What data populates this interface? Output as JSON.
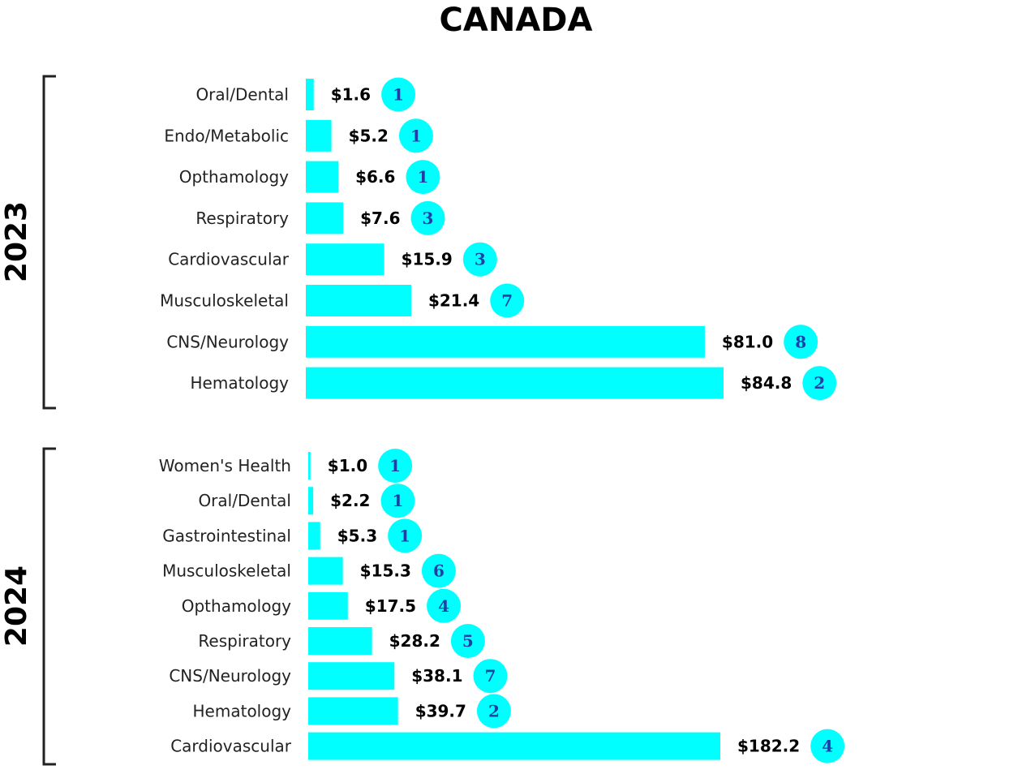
{
  "chart_data": {
    "type": "bar",
    "orientation": "horizontal",
    "title": "CANADA",
    "bar_color": "#00FFFF",
    "badge_color": "#00FFFF",
    "badge_text_color": "#1F3FA8",
    "groups": [
      {
        "label": "2023",
        "categories": [
          "Oral/Dental",
          "Endo/Metabolic",
          "Opthamology",
          "Respiratory",
          "Cardiovascular",
          "Musculoskeletal",
          "CNS/Neurology",
          "Hematology"
        ],
        "values": [
          1.6,
          5.2,
          6.6,
          7.6,
          15.9,
          21.4,
          81.0,
          84.8
        ],
        "value_labels": [
          "$1.6",
          "$5.2",
          "$6.6",
          "$7.6",
          "$15.9",
          "$21.4",
          "$81.0",
          "$84.8"
        ],
        "counts": [
          "1",
          "1",
          "1",
          "3",
          "3",
          "7",
          "8",
          "2"
        ]
      },
      {
        "label": "2024",
        "categories": [
          "Women's Health",
          "Oral/Dental",
          "Gastrointestinal",
          "Musculoskeletal",
          "Opthamology",
          "Respiratory",
          "CNS/Neurology",
          "Hematology",
          "Cardiovascular"
        ],
        "values": [
          1.0,
          2.2,
          5.3,
          15.3,
          17.5,
          28.2,
          38.1,
          39.7,
          182.2
        ],
        "value_labels": [
          "$1.0",
          "$2.2",
          "$5.3",
          "$15.3",
          "$17.5",
          "$28.2",
          "$38.1",
          "$39.7",
          "$182.2"
        ],
        "counts": [
          "1",
          "1",
          "1",
          "6",
          "4",
          "5",
          "7",
          "2",
          "4"
        ]
      }
    ]
  }
}
